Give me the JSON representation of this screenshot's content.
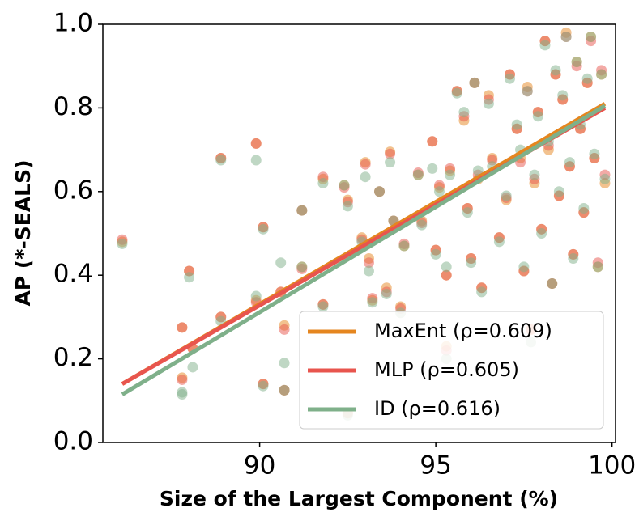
{
  "chart_data": {
    "type": "scatter",
    "xlabel": "Size of the Largest Component (%)",
    "ylabel": "AP (*-SEALS)",
    "xlim": [
      85.55,
      100.1
    ],
    "ylim": [
      0,
      1
    ],
    "xticks": [
      90,
      95,
      100
    ],
    "yticks": [
      {
        "value": 0,
        "label": "0.0"
      },
      0.2,
      0.4,
      0.6,
      0.8,
      {
        "value": 1,
        "label": "1.0"
      }
    ],
    "legend": "lower right",
    "x": [
      86.1,
      87.8,
      87.8,
      88.0,
      88.1,
      88.9,
      88.9,
      89.9,
      89.9,
      90.1,
      90.1,
      90.6,
      90.7,
      90.7,
      91.2,
      91.2,
      91.8,
      91.8,
      92.4,
      92.5,
      92.5,
      92.9,
      93.0,
      93.1,
      93.2,
      93.4,
      93.6,
      93.7,
      93.8,
      94.0,
      94.1,
      94.5,
      94.6,
      94.9,
      95.0,
      95.1,
      95.3,
      95.3,
      95.4,
      95.6,
      95.8,
      95.9,
      96.0,
      96.1,
      96.2,
      96.3,
      96.5,
      96.6,
      96.8,
      97.0,
      97.1,
      97.3,
      97.4,
      97.5,
      97.6,
      97.7,
      97.8,
      97.9,
      98.0,
      98.1,
      98.2,
      98.3,
      98.4,
      98.5,
      98.6,
      98.7,
      98.8,
      98.9,
      99.0,
      99.1,
      99.2,
      99.3,
      99.4,
      99.5,
      99.6,
      99.7,
      99.8
    ],
    "series": [
      {
        "name": "MaxEnt (ρ=0.609)",
        "color": "#e5861f",
        "fit_x": [
          86.1,
          99.8
        ],
        "fit_y": [
          0.14,
          0.81
        ],
        "values": [
          0.48,
          0.275,
          0.155,
          0.41,
          0.225,
          0.68,
          0.3,
          0.715,
          0.34,
          0.515,
          0.14,
          0.36,
          0.125,
          0.28,
          0.555,
          0.42,
          0.63,
          0.33,
          0.615,
          0.58,
          0.07,
          0.49,
          0.67,
          0.44,
          0.34,
          0.6,
          0.37,
          0.695,
          0.53,
          0.325,
          0.47,
          0.64,
          0.53,
          0.72,
          0.46,
          0.61,
          0.4,
          0.23,
          0.65,
          0.84,
          0.77,
          0.56,
          0.44,
          0.86,
          0.63,
          0.37,
          0.83,
          0.68,
          0.49,
          0.58,
          0.88,
          0.75,
          0.68,
          0.41,
          0.85,
          0.27,
          0.62,
          0.79,
          0.51,
          0.96,
          0.7,
          0.38,
          0.88,
          0.59,
          0.82,
          0.98,
          0.66,
          0.45,
          0.91,
          0.75,
          0.55,
          0.86,
          0.97,
          0.68,
          0.42,
          0.88,
          0.62
        ]
      },
      {
        "name": "MLP (ρ=0.605)",
        "color": "#e8554e",
        "fit_x": [
          86.1,
          99.8
        ],
        "fit_y": [
          0.14,
          0.8
        ],
        "values": [
          0.485,
          0.275,
          0.15,
          0.41,
          0.225,
          0.68,
          0.3,
          0.715,
          0.335,
          0.515,
          0.14,
          0.36,
          0.125,
          0.27,
          0.555,
          0.415,
          0.635,
          0.33,
          0.61,
          0.575,
          0.07,
          0.485,
          0.665,
          0.43,
          0.345,
          0.6,
          0.36,
          0.69,
          0.53,
          0.32,
          0.475,
          0.645,
          0.525,
          0.72,
          0.46,
          0.615,
          0.4,
          0.22,
          0.655,
          0.84,
          0.78,
          0.56,
          0.44,
          0.86,
          0.64,
          0.37,
          0.82,
          0.675,
          0.49,
          0.585,
          0.88,
          0.75,
          0.67,
          0.41,
          0.84,
          0.27,
          0.63,
          0.79,
          0.51,
          0.96,
          0.71,
          0.38,
          0.88,
          0.59,
          0.82,
          0.97,
          0.66,
          0.45,
          0.9,
          0.75,
          0.55,
          0.86,
          0.96,
          0.68,
          0.43,
          0.89,
          0.64
        ]
      },
      {
        "name": "ID (ρ=0.616)",
        "color": "#7fb08a",
        "fit_x": [
          86.1,
          99.8
        ],
        "fit_y": [
          0.115,
          0.805
        ],
        "values": [
          0.475,
          0.115,
          0.12,
          0.395,
          0.18,
          0.675,
          0.29,
          0.675,
          0.35,
          0.51,
          0.135,
          0.43,
          0.125,
          0.19,
          0.555,
          0.42,
          0.62,
          0.325,
          0.615,
          0.565,
          0.065,
          0.48,
          0.635,
          0.41,
          0.335,
          0.6,
          0.355,
          0.67,
          0.53,
          0.31,
          0.47,
          0.64,
          0.52,
          0.655,
          0.45,
          0.6,
          0.42,
          0.2,
          0.64,
          0.835,
          0.79,
          0.55,
          0.43,
          0.86,
          0.65,
          0.36,
          0.81,
          0.66,
          0.48,
          0.59,
          0.87,
          0.76,
          0.7,
          0.42,
          0.84,
          0.24,
          0.64,
          0.78,
          0.5,
          0.95,
          0.72,
          0.38,
          0.89,
          0.6,
          0.83,
          0.97,
          0.67,
          0.44,
          0.91,
          0.76,
          0.56,
          0.87,
          0.97,
          0.69,
          0.42,
          0.88,
          0.63
        ]
      }
    ]
  }
}
